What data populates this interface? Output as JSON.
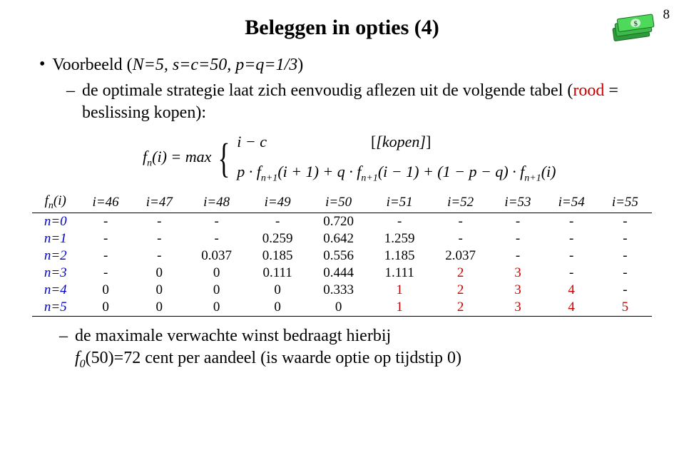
{
  "page_number": "8",
  "title": "Beleggen in opties (4)",
  "bullet": {
    "prefix": "Voorbeeld (",
    "params": "N=5, s=c=50, p=q=1/3",
    "suffix": ")"
  },
  "sub1": {
    "part1": "de optimale strategie laat zich eenvoudig aflezen uit de volgende tabel (",
    "red": "rood",
    "part2": " = beslissing kopen):"
  },
  "formula": {
    "lhs": "f",
    "lhs_sub": "n",
    "lhs_arg": "(i) = max",
    "case1_a": "i − c",
    "case1_label": "[kopen]",
    "case2": "p · f",
    "case2_sub1": "n+1",
    "case2_a": "(i + 1) + q · f",
    "case2_sub2": "n+1",
    "case2_b": "(i − 1) + (1 − p − q) · f",
    "case2_sub3": "n+1",
    "case2_c": "(i)"
  },
  "table": {
    "corner": "f",
    "corner_sub": "n",
    "corner_arg": "(i)",
    "cols": [
      "i=46",
      "i=47",
      "i=48",
      "i=49",
      "i=50",
      "i=51",
      "i=52",
      "i=53",
      "i=54",
      "i=55"
    ],
    "row_labels": [
      "n=0",
      "n=1",
      "n=2",
      "n=3",
      "n=4",
      "n=5"
    ],
    "cells": [
      [
        "-",
        "-",
        "-",
        "-",
        "0.720",
        "-",
        "-",
        "-",
        "-",
        "-"
      ],
      [
        "-",
        "-",
        "-",
        "0.259",
        "0.642",
        "1.259",
        "-",
        "-",
        "-",
        "-"
      ],
      [
        "-",
        "-",
        "0.037",
        "0.185",
        "0.556",
        "1.185",
        "2.037",
        "-",
        "-",
        "-"
      ],
      [
        "-",
        "0",
        "0",
        "0.111",
        "0.444",
        "1.111",
        "2",
        "3",
        "-",
        "-"
      ],
      [
        "0",
        "0",
        "0",
        "0",
        "0.333",
        "1",
        "2",
        "3",
        "4",
        "-"
      ],
      [
        "0",
        "0",
        "0",
        "0",
        "0",
        "1",
        "2",
        "3",
        "4",
        "5"
      ]
    ],
    "red_mask": [
      [
        false,
        false,
        false,
        false,
        false,
        false,
        false,
        false,
        false,
        false
      ],
      [
        false,
        false,
        false,
        false,
        false,
        false,
        false,
        false,
        false,
        false
      ],
      [
        false,
        false,
        false,
        false,
        false,
        false,
        false,
        false,
        false,
        false
      ],
      [
        false,
        false,
        false,
        false,
        false,
        false,
        true,
        true,
        false,
        false
      ],
      [
        false,
        false,
        false,
        false,
        false,
        true,
        true,
        true,
        true,
        false
      ],
      [
        false,
        false,
        false,
        false,
        false,
        true,
        true,
        true,
        true,
        true
      ]
    ]
  },
  "sub2": "de maximale verwachte winst bedraagt hierbij",
  "sub2b_a": "f",
  "sub2b_sub": "0",
  "sub2b_b": "(50)=72 cent per aandeel (is waarde optie op tijdstip 0)",
  "colors": {
    "red": "#cc0000",
    "blue": "#0000cc",
    "text": "#000000",
    "bg": "#ffffff"
  }
}
